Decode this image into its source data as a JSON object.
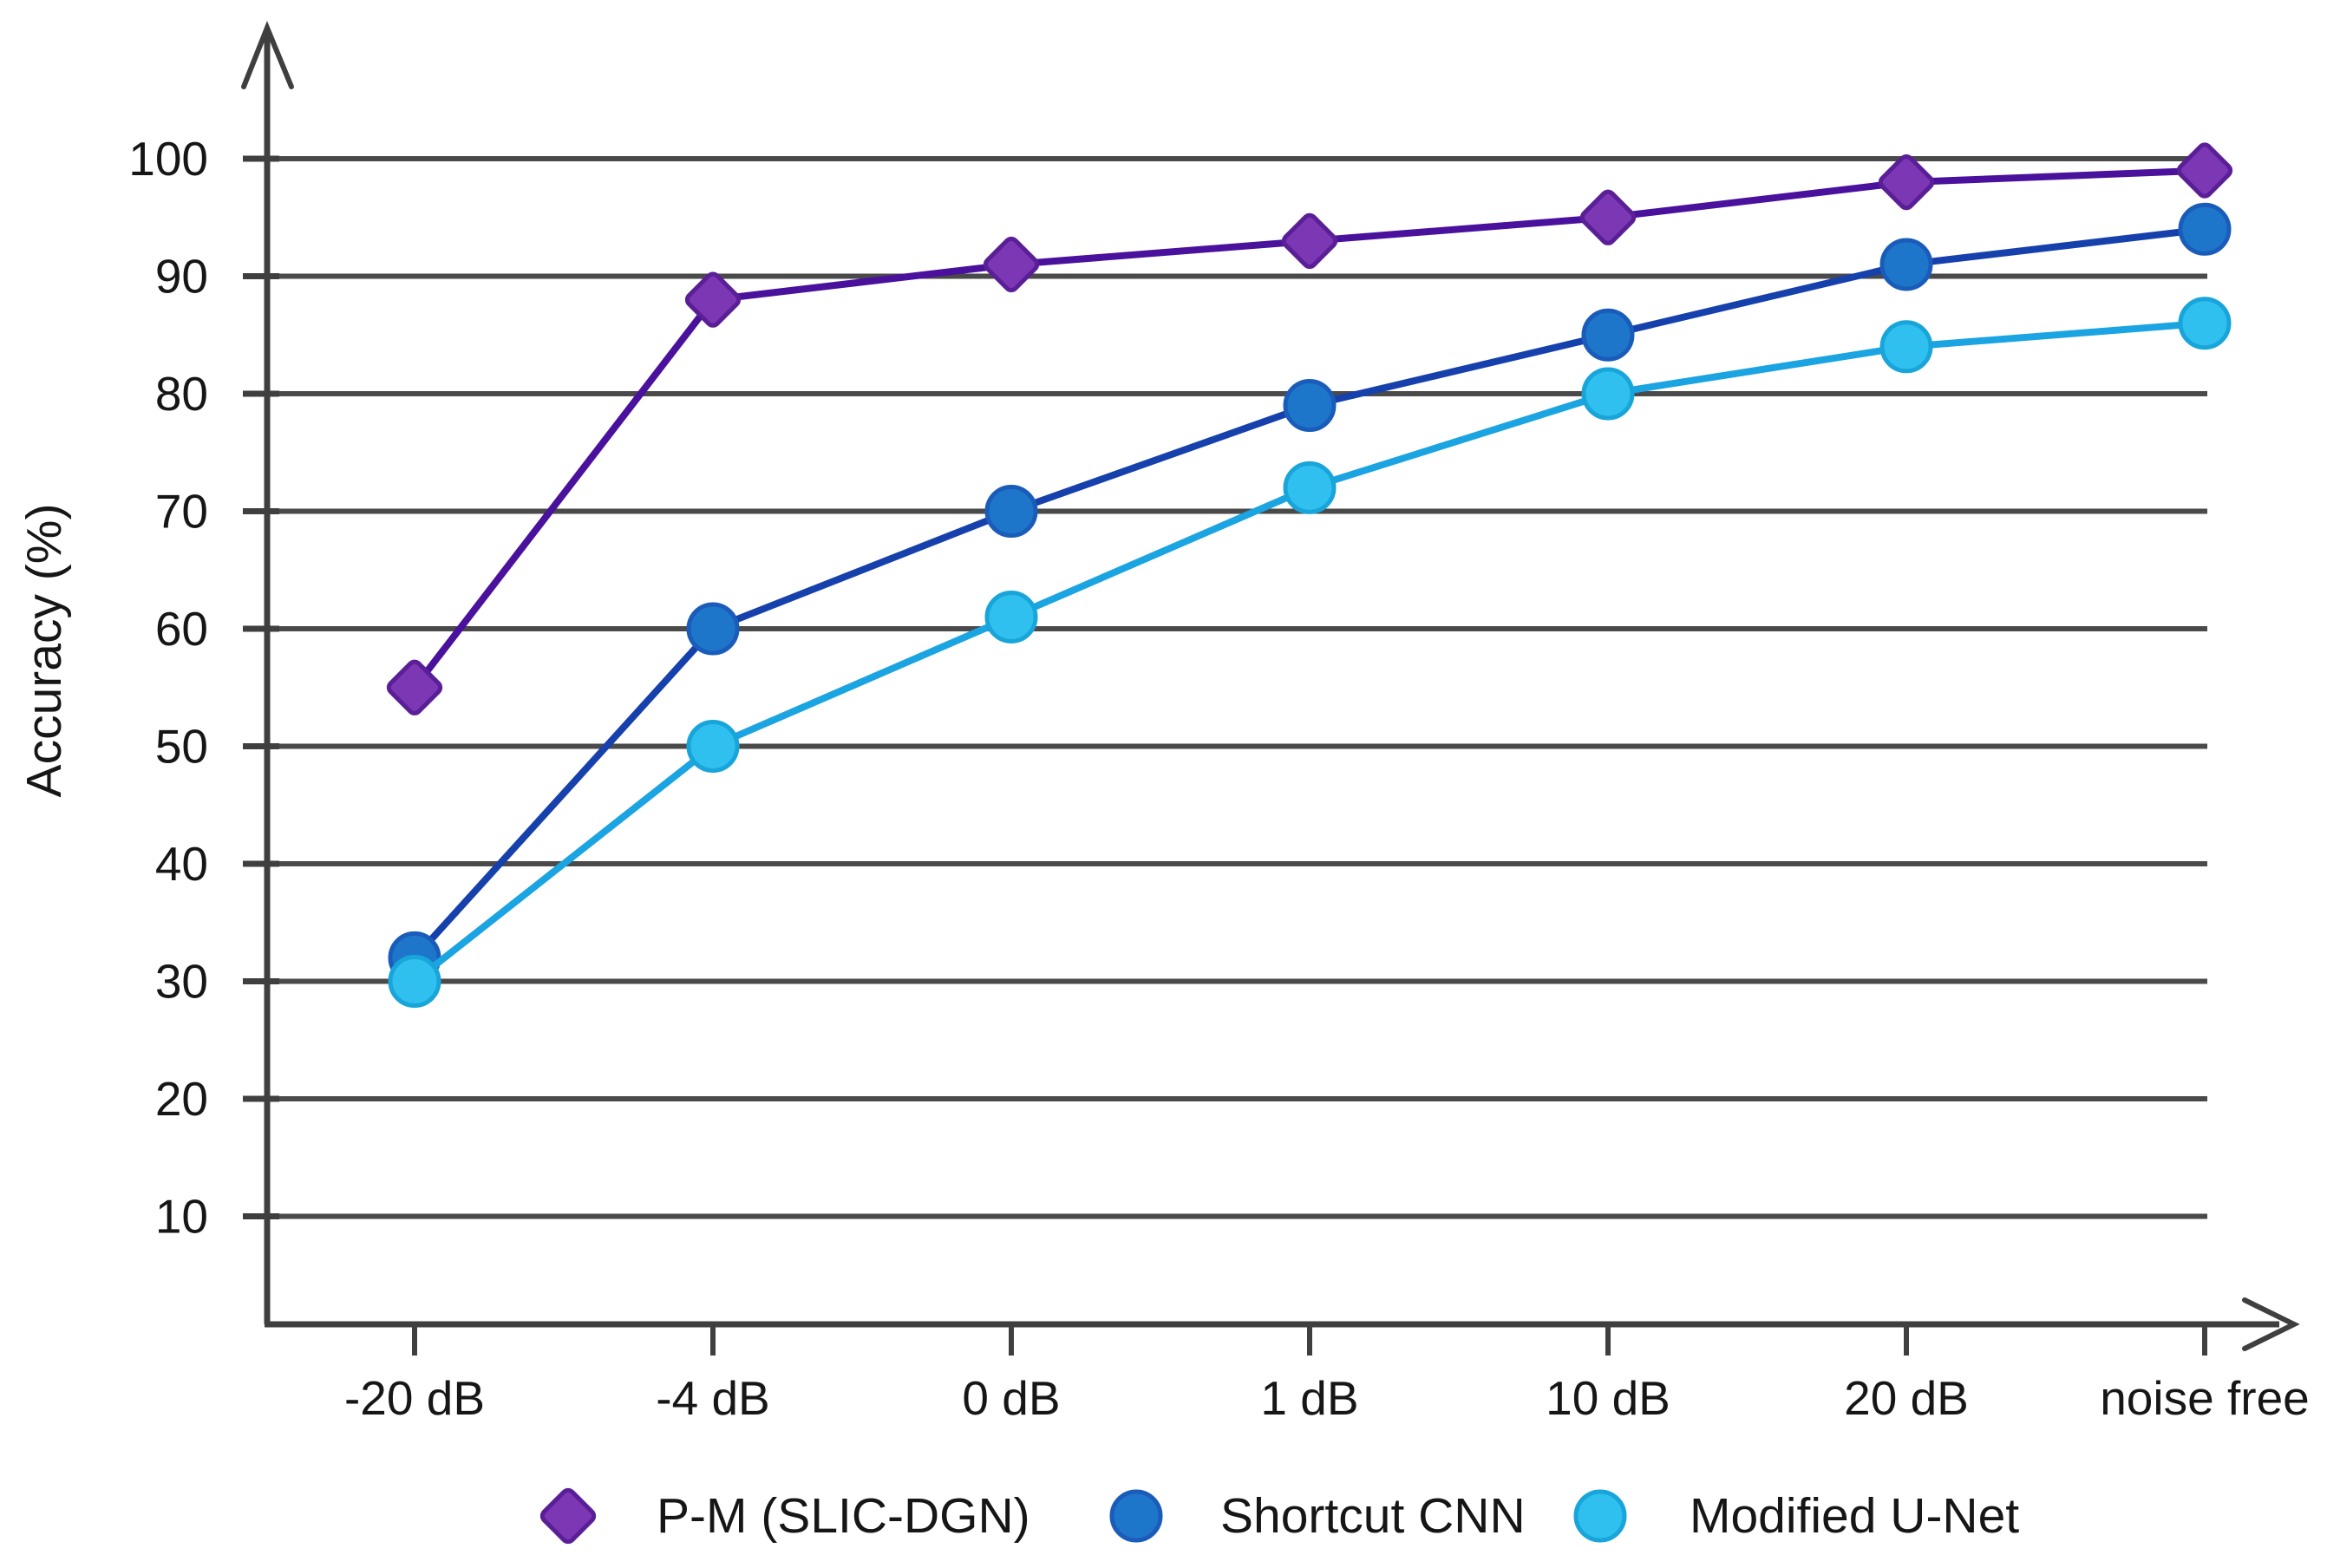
{
  "chart_data": {
    "type": "line",
    "title": "",
    "xlabel": "",
    "ylabel": "Accuracy (%)",
    "categories": [
      "-20 dB",
      "-4 dB",
      "0 dB",
      "1 dB",
      "10 dB",
      "20 dB",
      "noise free"
    ],
    "series": [
      {
        "name": "P-M (SLIC-DGN)",
        "marker": "diamond",
        "values": [
          55,
          88,
          91,
          93,
          95,
          98,
          99
        ],
        "line_color": "#4a119c",
        "marker_color": "#7b37b4",
        "marker_edge": "#5a1f96"
      },
      {
        "name": "Shortcut CNN",
        "marker": "circle",
        "values": [
          32,
          60,
          70,
          79,
          85,
          91,
          94
        ],
        "line_color": "#1641ad",
        "marker_color": "#1e76cb",
        "marker_edge": "#1a5cba"
      },
      {
        "name": "Modified U-Net",
        "marker": "circle",
        "values": [
          30,
          50,
          61,
          72,
          80,
          84,
          86
        ],
        "line_color": "#1ba4e2",
        "marker_color": "#2fc0ef",
        "marker_edge": "#18a5da"
      }
    ],
    "yticks": [
      10,
      20,
      30,
      40,
      50,
      60,
      70,
      80,
      90,
      100
    ],
    "ylim": [
      0,
      108
    ],
    "grid": "horizontal",
    "grid_color": "#4a4a4a",
    "axis_color": "#3f3f3f",
    "text_color": "#161616",
    "legend_position": "bottom"
  }
}
